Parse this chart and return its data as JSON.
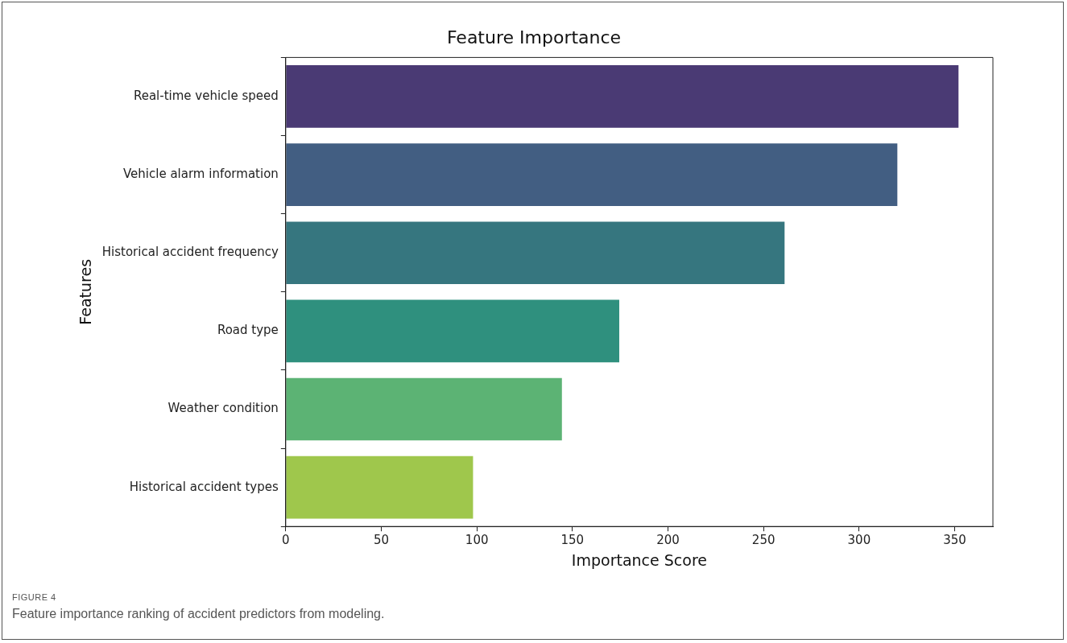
{
  "chart_data": {
    "type": "bar",
    "orientation": "horizontal",
    "title": "Feature Importance",
    "xlabel": "Importance Score",
    "ylabel": "Features",
    "categories": [
      "Real-time vehicle speed",
      "Vehicle alarm information",
      "Historical accident frequency",
      "Road type",
      "Weather condition",
      "Historical accident types"
    ],
    "values": [
      352,
      320,
      261,
      174.5,
      144.5,
      98
    ],
    "colors": [
      "#4a3a74",
      "#425e82",
      "#36767f",
      "#2f907e",
      "#5cb374",
      "#9fc74c"
    ],
    "xlim": [
      0,
      370
    ],
    "xticks": [
      0,
      50,
      100,
      150,
      200,
      250,
      300,
      350
    ],
    "grid": false,
    "legend": false,
    "annotations": [
      "FIGURE 4",
      "Feature importance ranking of accident predictors from modeling."
    ]
  }
}
